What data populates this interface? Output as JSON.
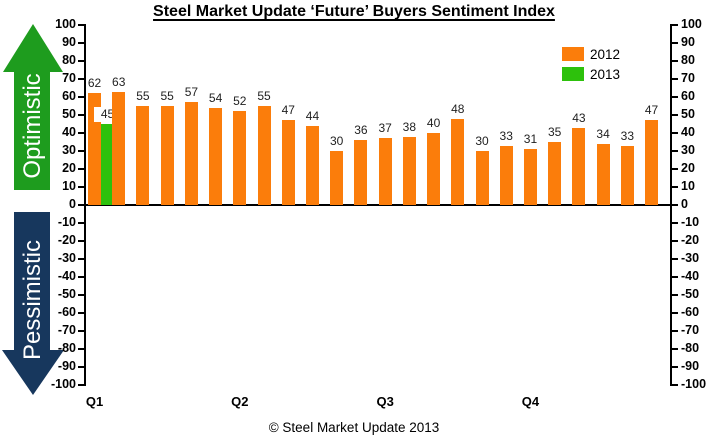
{
  "title": "Steel Market Update ‘Future’ Buyers Sentiment Index",
  "footer": "© Steel Market Update 2013",
  "arrows": {
    "up": {
      "label": "Optimistic",
      "color": "#1E9C1E"
    },
    "down": {
      "label": "Pessimistic",
      "color": "#17375D"
    }
  },
  "chart_data": {
    "type": "bar",
    "title": "Steel Market Update ‘Future’ Buyers Sentiment Index",
    "categories": [
      "Q1",
      "Q2",
      "Q3",
      "Q4"
    ],
    "series": [
      {
        "name": "2012",
        "color": "#FB7D0B",
        "values": [
          62,
          63,
          55,
          55,
          57,
          54,
          52,
          55,
          47,
          44,
          30,
          36,
          37,
          38,
          40,
          48,
          30,
          33,
          31,
          35,
          43,
          34,
          33,
          47
        ]
      },
      {
        "name": "2013",
        "color": "#2DC10C",
        "values": [
          45,
          null,
          null,
          null,
          null,
          null,
          null,
          null,
          null,
          null,
          null,
          null,
          null,
          null,
          null,
          null,
          null,
          null,
          null,
          null,
          null,
          null,
          null,
          null
        ]
      }
    ],
    "ylim": [
      -100,
      100
    ],
    "ytick_step": 10,
    "grid": false,
    "axis_sides": [
      "left",
      "right"
    ],
    "legend_position": "top-right",
    "annotations": {
      "positive_zone": "Optimistic",
      "negative_zone": "Pessimistic"
    }
  }
}
